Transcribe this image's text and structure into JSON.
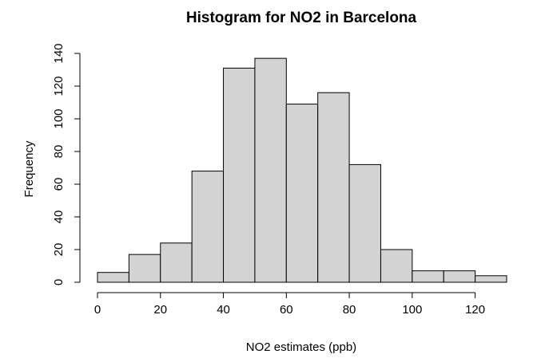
{
  "chart_data": {
    "type": "bar",
    "title": "Histogram for NO2 in Barcelona",
    "xlabel": "NO2 estimates (ppb)",
    "ylabel": "Frequency",
    "bins": [
      [
        0,
        10
      ],
      [
        10,
        20
      ],
      [
        20,
        30
      ],
      [
        30,
        40
      ],
      [
        40,
        50
      ],
      [
        50,
        60
      ],
      [
        60,
        70
      ],
      [
        70,
        80
      ],
      [
        80,
        90
      ],
      [
        90,
        100
      ],
      [
        100,
        110
      ],
      [
        110,
        120
      ],
      [
        120,
        130
      ]
    ],
    "values": [
      6,
      17,
      24,
      68,
      131,
      137,
      109,
      116,
      72,
      20,
      7,
      7,
      4
    ],
    "xlim": [
      0,
      130
    ],
    "ylim": [
      0,
      140
    ],
    "x_ticks": [
      0,
      20,
      40,
      60,
      80,
      100,
      120
    ],
    "y_ticks": [
      0,
      20,
      40,
      60,
      80,
      100,
      120,
      140
    ],
    "bar_color": "#d3d3d3",
    "edge_color": "#000000",
    "grid": false
  }
}
